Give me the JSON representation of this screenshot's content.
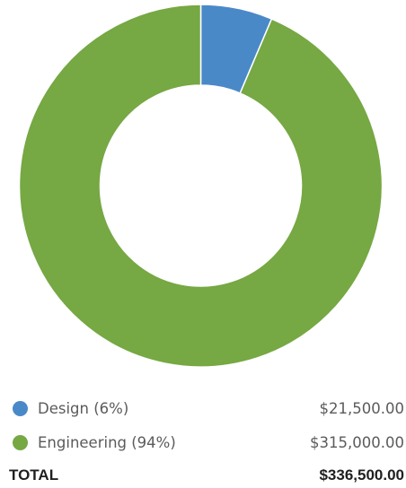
{
  "chart_data": {
    "type": "pie",
    "donut": true,
    "series": [
      {
        "name": "Design (6%)",
        "value": 21500.0,
        "amount": "$21,500.00",
        "color": "#4a89c8"
      },
      {
        "name": "Engineering (94%)",
        "value": 315000.0,
        "amount": "$315,000.00",
        "color": "#76a843"
      }
    ],
    "legend_position": "bottom"
  },
  "total": {
    "label": "TOTAL",
    "amount": "$336,500.00"
  }
}
